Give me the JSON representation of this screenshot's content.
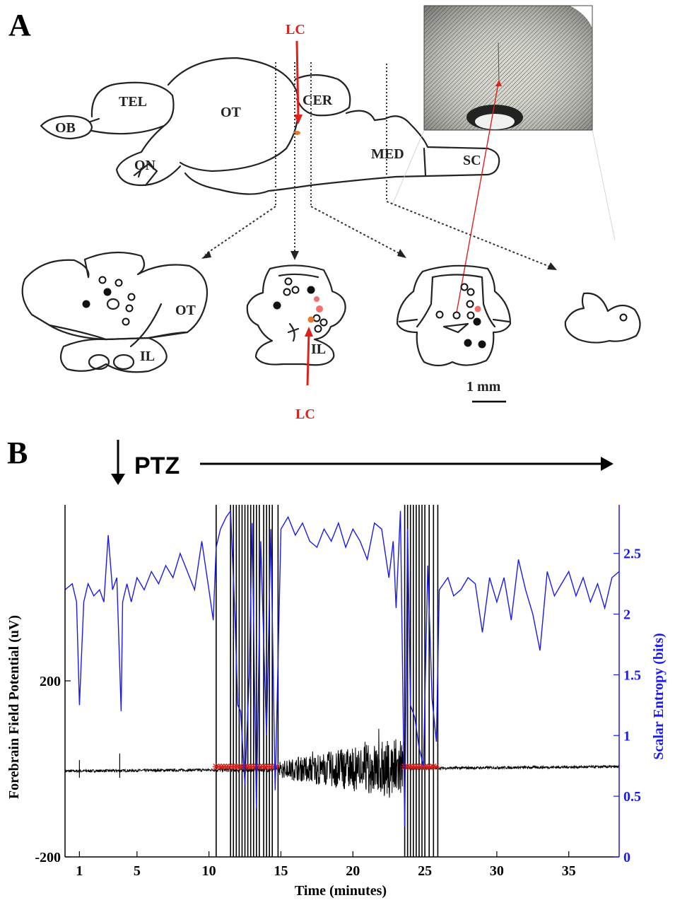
{
  "panels": {
    "a": {
      "letter": "A",
      "regions": {
        "ob": "OB",
        "tel": "TEL",
        "ot": "OT",
        "cer": "CER",
        "on": "ON",
        "med": "MED",
        "sc": "SC",
        "ot_section": "OT",
        "il_section1": "IL",
        "il_section2": "IL"
      },
      "lc_top": "LC",
      "lc_bottom": "LC",
      "scale_bar": "1 mm",
      "colors": {
        "lc_marker": "#e0201b",
        "red_dots": "#f07070"
      }
    },
    "b": {
      "letter": "B",
      "drug": "PTZ",
      "chart_data": {
        "type": "line",
        "xlabel": "Time (minutes)",
        "ylabel": "Forebrain Field Potential (uV)",
        "y2label": "Scalar Entropy (bits)",
        "xlim": [
          0,
          38.5
        ],
        "ylim": [
          -200,
          600
        ],
        "y2lim": [
          0,
          2.9
        ],
        "x_ticks": [
          1,
          5,
          10,
          15,
          20,
          25,
          30,
          35
        ],
        "y_ticks": [
          200,
          -200
        ],
        "y2_ticks": [
          0,
          0.5,
          1,
          1.5,
          2,
          2.5
        ],
        "drug_onset_minutes": 3.6,
        "seizure_windows_minutes": [
          [
            10.5,
            14.8
          ],
          [
            23.6,
            25.9
          ]
        ],
        "vertical_lines_minutes": [
          10.5,
          11.5,
          11.7,
          11.9,
          12.1,
          12.3,
          12.5,
          12.7,
          12.9,
          13.1,
          13.3,
          13.5,
          13.8,
          14.0,
          14.2,
          14.4,
          14.8,
          23.6,
          23.8,
          24.0,
          24.2,
          24.4,
          24.6,
          24.8,
          25.0,
          25.3,
          25.6,
          25.9
        ],
        "series": [
          {
            "axis": "right",
            "color": "#1a1aee",
            "x": [
              0,
              0.5,
              0.8,
              1.0,
              1.3,
              1.6,
              2.0,
              2.4,
              2.7,
              3.0,
              3.3,
              3.6,
              3.9,
              4.0,
              4.3,
              4.6,
              5.0,
              5.5,
              6.0,
              6.5,
              7.0,
              7.5,
              8.0,
              8.5,
              9.0,
              9.5,
              10.0,
              10.3,
              10.5,
              10.8,
              11.2,
              11.5,
              11.8,
              12.0,
              12.2,
              12.5,
              12.8,
              13.0,
              13.3,
              13.6,
              14.0,
              14.3,
              14.6,
              15.0,
              15.5,
              16.0,
              16.5,
              17.0,
              17.5,
              18.0,
              18.5,
              19.0,
              19.5,
              20.0,
              20.5,
              21.0,
              21.5,
              22.0,
              22.5,
              22.8,
              23.0,
              23.3,
              23.6,
              23.8,
              24.0,
              24.3,
              24.6,
              24.9,
              25.2,
              25.5,
              25.8,
              26.0,
              26.3,
              26.6,
              27.0,
              27.5,
              28.0,
              28.5,
              29.0,
              29.5,
              30.0,
              30.5,
              31.0,
              31.5,
              32.0,
              32.5,
              33.0,
              33.5,
              34.0,
              34.5,
              35.0,
              35.5,
              36.0,
              36.5,
              37.0,
              37.5,
              38.0,
              38.5
            ],
            "y": [
              2.2,
              2.25,
              2.1,
              1.25,
              2.1,
              2.25,
              2.15,
              2.2,
              2.1,
              2.65,
              2.2,
              2.3,
              1.2,
              2.1,
              2.25,
              2.1,
              2.3,
              2.2,
              2.35,
              2.25,
              2.4,
              2.3,
              2.5,
              2.35,
              2.2,
              2.6,
              2.2,
              1.95,
              2.55,
              2.7,
              2.8,
              2.85,
              2.0,
              1.25,
              1.2,
              0.6,
              1.5,
              2.75,
              0.4,
              2.6,
              1.0,
              2.7,
              0.55,
              2.7,
              2.8,
              2.65,
              2.75,
              2.6,
              2.55,
              2.7,
              2.6,
              2.75,
              2.55,
              2.7,
              2.6,
              2.45,
              2.75,
              2.7,
              2.3,
              2.6,
              2.05,
              2.85,
              0.25,
              2.7,
              1.25,
              1.15,
              0.9,
              0.75,
              2.4,
              1.3,
              0.95,
              2.2,
              2.25,
              2.3,
              2.15,
              2.2,
              2.3,
              2.25,
              1.85,
              2.3,
              2.1,
              2.3,
              1.95,
              2.45,
              2.2,
              2.0,
              1.7,
              2.35,
              2.15,
              2.25,
              2.35,
              2.15,
              2.3,
              2.1,
              2.25,
              2.05,
              2.3,
              2.35
            ]
          },
          {
            "axis": "left",
            "color": "#000000",
            "description_ranges": "baseline ~-5 to 0, large oscillation 14.8–23.6 up to ±80"
          }
        ]
      }
    }
  }
}
